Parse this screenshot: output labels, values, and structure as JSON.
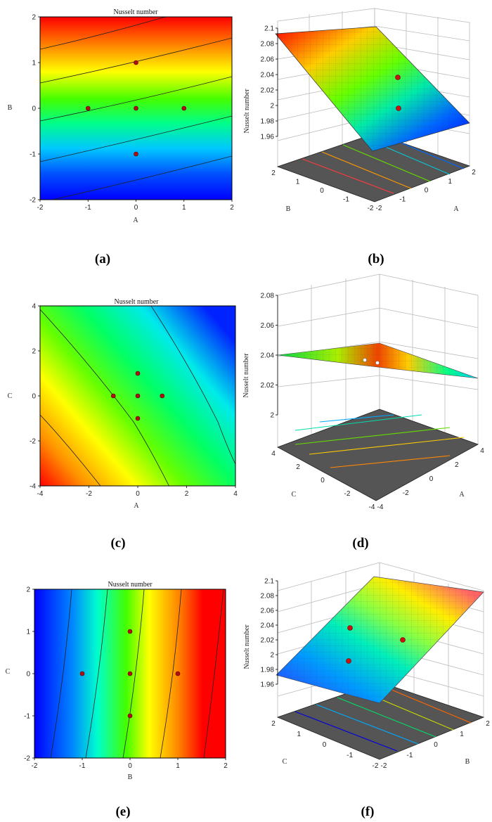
{
  "captions": [
    "(a)",
    "(b)",
    "(c)",
    "(d)",
    "(e)",
    "(f)"
  ],
  "chart_data": [
    {
      "panel": "(a)",
      "type": "heatmap",
      "title": "Nusselt number",
      "xlabel": "A",
      "ylabel": "B",
      "xlim": [
        -2,
        2
      ],
      "ylim": [
        -2,
        2
      ],
      "x_ticks": [
        -2,
        -1,
        0,
        1,
        2
      ],
      "y_ticks": [
        -2,
        -1,
        0,
        1,
        2
      ],
      "colormap": [
        "#0000ff",
        "#00b4ff",
        "#00ff66",
        "#66ff00",
        "#ffff00",
        "#ff8800",
        "#ff0000"
      ],
      "design_points": [
        [
          -1,
          0
        ],
        [
          0,
          0
        ],
        [
          1,
          0
        ],
        [
          0,
          1
        ],
        [
          0,
          -1
        ]
      ]
    },
    {
      "panel": "(b)",
      "type": "surface",
      "zlabel": "Nusselt number",
      "xlabel": "A",
      "ylabel": "B",
      "x_ticks": [
        -2,
        -1,
        0,
        1,
        2
      ],
      "y_ticks": [
        -2,
        -1,
        0,
        1,
        2
      ],
      "zlim": [
        1.96,
        2.1
      ],
      "z_ticks": [
        1.96,
        1.98,
        2,
        2.02,
        2.04,
        2.06,
        2.08,
        2.1
      ]
    },
    {
      "panel": "(c)",
      "type": "heatmap",
      "title": "Nusselt number",
      "xlabel": "A",
      "ylabel": "C",
      "xlim": [
        -4,
        4
      ],
      "ylim": [
        -4,
        4
      ],
      "x_ticks": [
        -4,
        -2,
        0,
        2,
        4
      ],
      "y_ticks": [
        -4,
        -2,
        0,
        2,
        4
      ],
      "colormap": [
        "#ff0000",
        "#ff8800",
        "#ffff00",
        "#66ff00",
        "#00ff66",
        "#00e8e8",
        "#0000ff"
      ],
      "design_points": [
        [
          -1,
          0
        ],
        [
          0,
          0
        ],
        [
          1,
          0
        ],
        [
          0,
          1
        ],
        [
          0,
          -1
        ]
      ]
    },
    {
      "panel": "(d)",
      "type": "surface",
      "zlabel": "Nusselt number",
      "xlabel": "A",
      "ylabel": "C",
      "x_ticks": [
        -4,
        -2,
        0,
        2,
        4
      ],
      "y_ticks": [
        -4,
        -2,
        0,
        2,
        4
      ],
      "zlim": [
        2,
        2.08
      ],
      "z_ticks": [
        2,
        2.02,
        2.04,
        2.06,
        2.08
      ]
    },
    {
      "panel": "(e)",
      "type": "heatmap",
      "title": "Nusselt number",
      "xlabel": "B",
      "ylabel": "C",
      "xlim": [
        -2,
        2
      ],
      "ylim": [
        -2,
        2
      ],
      "x_ticks": [
        -2,
        -1,
        0,
        1,
        2
      ],
      "y_ticks": [
        -2,
        -1,
        0,
        1,
        2
      ],
      "colormap": [
        "#0000ff",
        "#00b4ff",
        "#00ffaa",
        "#66ff00",
        "#ffff00",
        "#ff8800",
        "#ff0000"
      ],
      "design_points": [
        [
          -1,
          0
        ],
        [
          0,
          0
        ],
        [
          1,
          0
        ],
        [
          0,
          1
        ],
        [
          0,
          -1
        ]
      ]
    },
    {
      "panel": "(f)",
      "type": "surface",
      "zlabel": "Nusselt number",
      "xlabel": "B",
      "ylabel": "C",
      "x_ticks": [
        -2,
        -1,
        0,
        1,
        2
      ],
      "y_ticks": [
        -2,
        -1,
        0,
        1,
        2
      ],
      "zlim": [
        1.96,
        2.1
      ],
      "z_ticks": [
        1.96,
        1.98,
        2,
        2.02,
        2.04,
        2.06,
        2.08,
        2.1
      ]
    }
  ]
}
